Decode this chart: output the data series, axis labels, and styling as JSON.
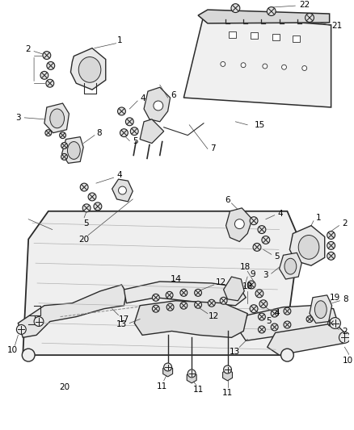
{
  "bg_color": "#ffffff",
  "line_color": "#2a2a2a",
  "label_color": "#000000",
  "fig_width": 4.38,
  "fig_height": 5.33,
  "dpi": 100
}
